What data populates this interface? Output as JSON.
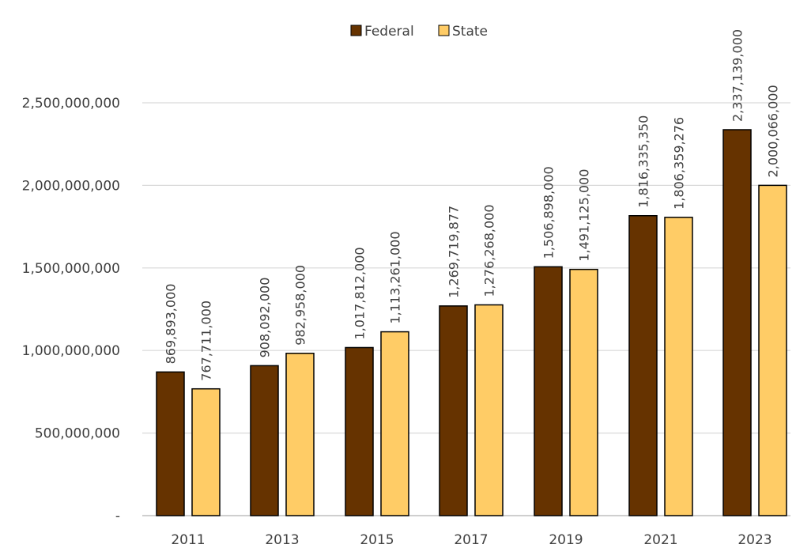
{
  "chart_data": {
    "type": "bar",
    "categories": [
      "2011",
      "2013",
      "2015",
      "2017",
      "2019",
      "2021",
      "2023"
    ],
    "series": [
      {
        "name": "Federal",
        "color": "#663300",
        "values": [
          869893000,
          908092000,
          1017812000,
          1269719877,
          1506898000,
          1816335350,
          2337139000
        ],
        "labels": [
          "869,893,000",
          "908,092,000",
          "1,017,812,000",
          "1,269,719,877",
          "1,506,898,000",
          "1,816,335,350",
          "2,337,139,000"
        ]
      },
      {
        "name": "State",
        "color": "#FFCC66",
        "values": [
          767711000,
          982958000,
          1113261000,
          1276268000,
          1491125000,
          1806359276,
          2000066000
        ],
        "labels": [
          "767,711,000",
          "982,958,000",
          "1,113,261,000",
          "1,276,268,000",
          "1,491,125,000",
          "1,806,359,276",
          "2,000,066,000"
        ]
      }
    ],
    "ylim": [
      0,
      2500000000
    ],
    "yticks": [
      0,
      500000000,
      1000000000,
      1500000000,
      2000000000,
      2500000000
    ],
    "ytick_labels": [
      "-",
      "500,000,000",
      "1,000,000,000",
      "1,500,000,000",
      "2,000,000,000",
      "2,500,000,000"
    ],
    "grid": true,
    "legend_position": "top-center",
    "gridline_color": "#d9d9d9",
    "axis_color": "#bfbfbf",
    "bar_outline_color": "#000000"
  }
}
